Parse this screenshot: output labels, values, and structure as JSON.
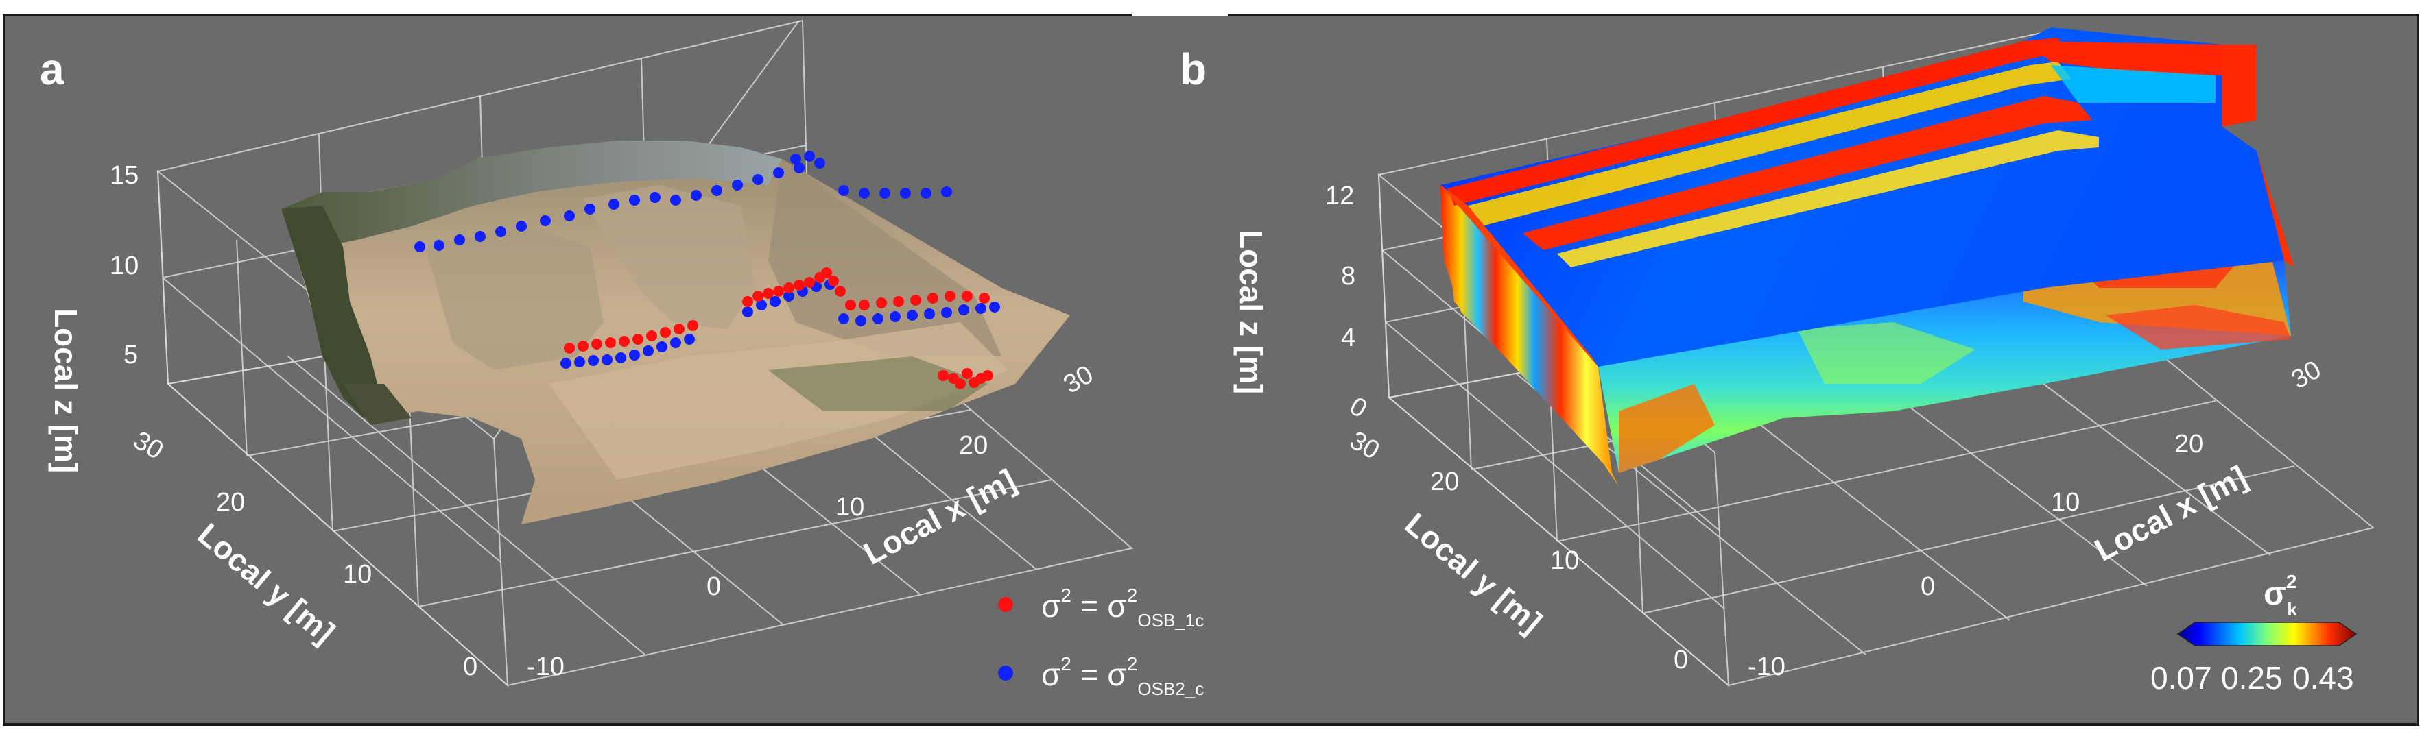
{
  "panels": [
    {
      "label": "a",
      "axes": {
        "z_label": "Local z [m]",
        "z_ticks": [
          "15",
          "10",
          "5"
        ],
        "y_label": "Local y [m]",
        "y_ticks": [
          "30",
          "20",
          "10",
          "0"
        ],
        "x_label": "Local x [m]",
        "x_ticks": [
          "-10",
          "0",
          "10",
          "20",
          "30"
        ]
      },
      "legend": [
        {
          "symbol": "σ",
          "sup": "2",
          "eq": " = σ",
          "sup2": "2",
          "sub": "OSB_1c",
          "color": "#ff1010"
        },
        {
          "symbol": "σ",
          "sup": "2",
          "eq": " = σ",
          "sup2": "2",
          "sub": "OSB2_c",
          "color": "#1020ff"
        }
      ]
    },
    {
      "label": "b",
      "axes": {
        "z_label": "Local z [m]",
        "z_ticks": [
          "12",
          "8",
          "4",
          "0"
        ],
        "y_label": "Local y [m]",
        "y_ticks": [
          "30",
          "20",
          "10",
          "0"
        ],
        "x_label": "Local x [m]",
        "x_ticks": [
          "-10",
          "0",
          "10",
          "20",
          "30"
        ]
      },
      "colorbar": {
        "title": "σ",
        "title_sup": "2",
        "title_sub": "k",
        "ticks": [
          "0.07",
          "0.25",
          "0.43"
        ]
      }
    }
  ],
  "colors": {
    "background": "#6b6b6b",
    "frame": "#1a1a1a"
  }
}
